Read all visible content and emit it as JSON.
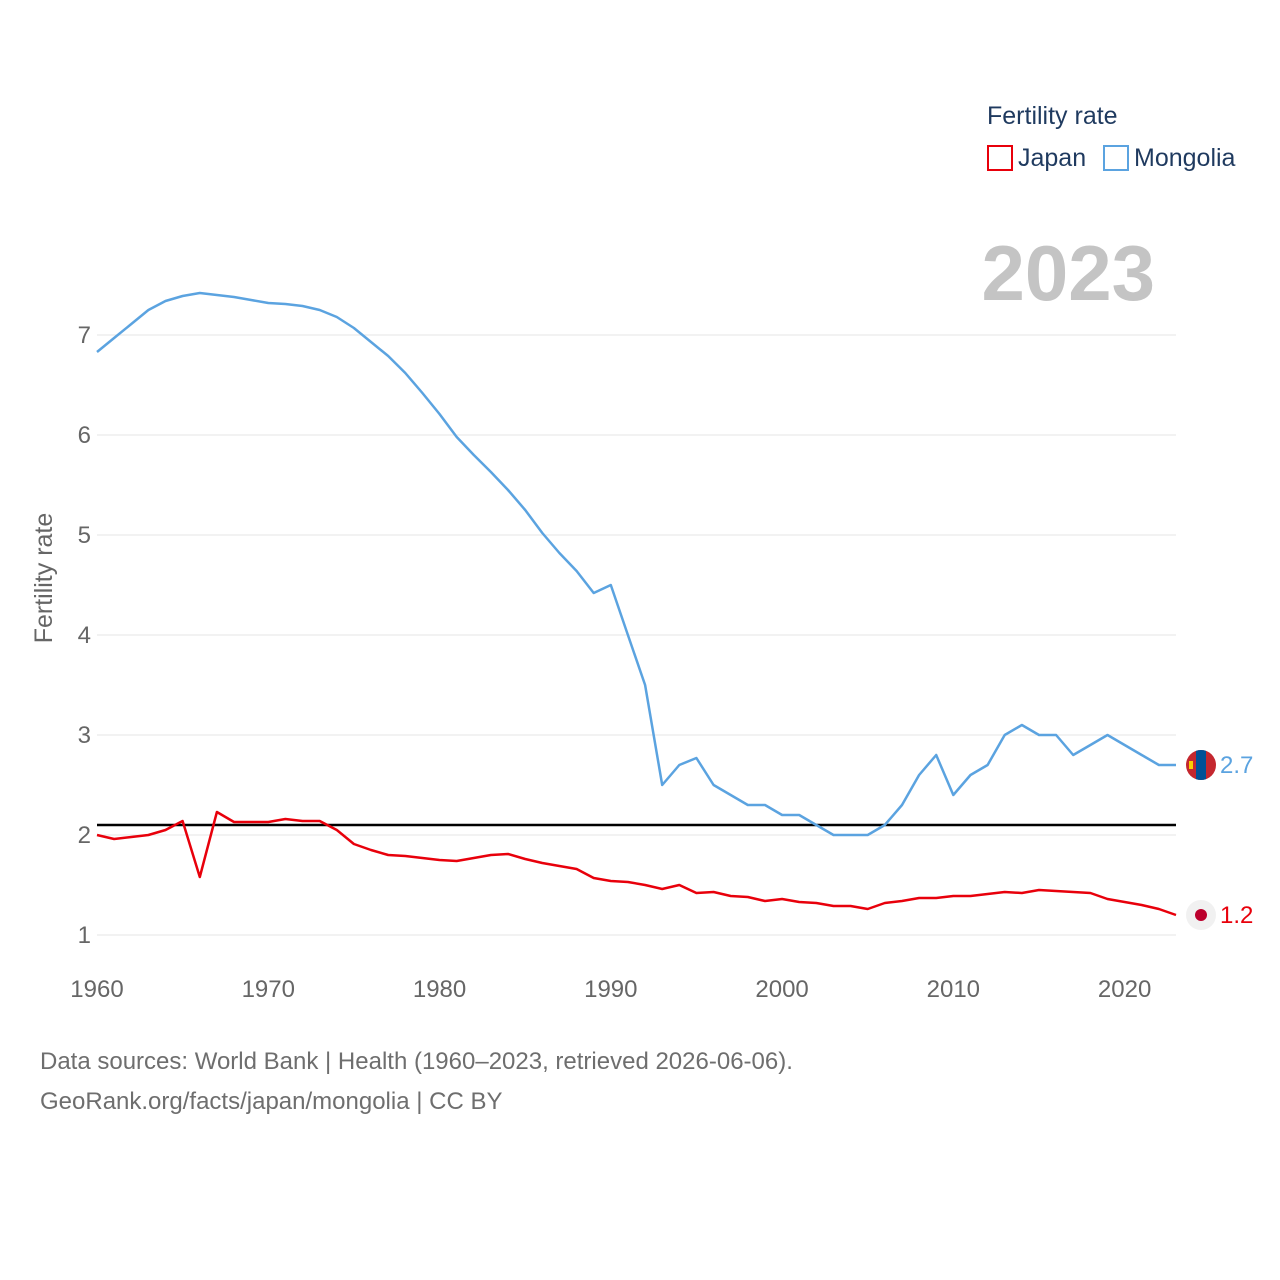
{
  "chart_data": {
    "type": "line",
    "ylabel": "Fertility rate",
    "xlabel": "",
    "xlim": [
      1960,
      2023
    ],
    "ylim": [
      0.75,
      7.95
    ],
    "yticks": [
      1,
      2,
      3,
      4,
      5,
      6,
      7
    ],
    "xticks": [
      1960,
      1970,
      1980,
      1990,
      2000,
      2010,
      2020
    ],
    "grid": true,
    "reference_line": 2.1,
    "year_label": "2023",
    "legend": {
      "title": "Fertility rate",
      "position": "top-right"
    },
    "colors": {
      "japan": "#e8000b",
      "mongolia": "#5ba3e0",
      "reference": "#000000",
      "grid": "#e6e6e6"
    },
    "x": [
      1960,
      1961,
      1962,
      1963,
      1964,
      1965,
      1966,
      1967,
      1968,
      1969,
      1970,
      1971,
      1972,
      1973,
      1974,
      1975,
      1976,
      1977,
      1978,
      1979,
      1980,
      1981,
      1982,
      1983,
      1984,
      1985,
      1986,
      1987,
      1988,
      1989,
      1990,
      1991,
      1992,
      1993,
      1994,
      1995,
      1996,
      1997,
      1998,
      1999,
      2000,
      2001,
      2002,
      2003,
      2004,
      2005,
      2006,
      2007,
      2008,
      2009,
      2010,
      2011,
      2012,
      2013,
      2014,
      2015,
      2016,
      2017,
      2018,
      2019,
      2020,
      2021,
      2022,
      2023
    ],
    "series": [
      {
        "name": "Japan",
        "color": "#e8000b",
        "end_label": "1.2",
        "values": [
          2.0,
          1.96,
          1.98,
          2.0,
          2.05,
          2.14,
          1.58,
          2.23,
          2.13,
          2.13,
          2.13,
          2.16,
          2.14,
          2.14,
          2.05,
          1.91,
          1.85,
          1.8,
          1.79,
          1.77,
          1.75,
          1.74,
          1.77,
          1.8,
          1.81,
          1.76,
          1.72,
          1.69,
          1.66,
          1.57,
          1.54,
          1.53,
          1.5,
          1.46,
          1.5,
          1.42,
          1.43,
          1.39,
          1.38,
          1.34,
          1.36,
          1.33,
          1.32,
          1.29,
          1.29,
          1.26,
          1.32,
          1.34,
          1.37,
          1.37,
          1.39,
          1.39,
          1.41,
          1.43,
          1.42,
          1.45,
          1.44,
          1.43,
          1.42,
          1.36,
          1.33,
          1.3,
          1.26,
          1.2
        ]
      },
      {
        "name": "Mongolia",
        "color": "#5ba3e0",
        "end_label": "2.7",
        "values": [
          6.83,
          6.97,
          7.11,
          7.25,
          7.34,
          7.39,
          7.42,
          7.4,
          7.38,
          7.35,
          7.32,
          7.31,
          7.29,
          7.25,
          7.18,
          7.07,
          6.93,
          6.79,
          6.62,
          6.42,
          6.21,
          5.98,
          5.8,
          5.63,
          5.45,
          5.25,
          5.02,
          4.82,
          4.64,
          4.42,
          4.5,
          4.0,
          3.5,
          2.5,
          2.7,
          2.77,
          2.5,
          2.4,
          2.3,
          2.3,
          2.2,
          2.2,
          2.1,
          2.0,
          2.0,
          2.0,
          2.1,
          2.3,
          2.6,
          2.8,
          2.4,
          2.6,
          2.7,
          3.0,
          3.1,
          3.0,
          3.0,
          2.8,
          2.9,
          3.0,
          2.9,
          2.8,
          2.7,
          2.7
        ]
      }
    ]
  },
  "footer": {
    "line1": "Data sources: World Bank | Health (1960–2023, retrieved 2026-06-06).",
    "line2": "GeoRank.org/facts/japan/mongolia | CC BY"
  }
}
